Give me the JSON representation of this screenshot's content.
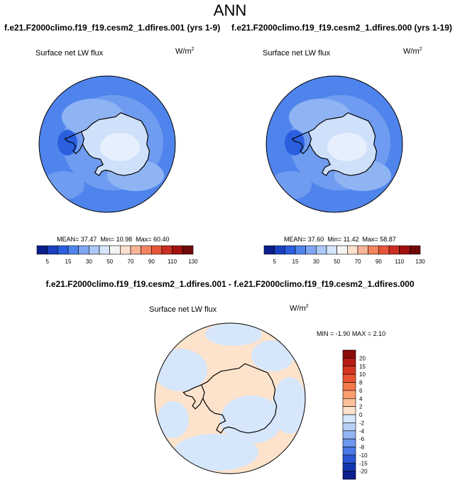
{
  "title": "ANN",
  "case_titles": [
    "f.e21.F2000climo.f19_f19.cesm2_1.dfires.001 (yrs 1-9)",
    "f.e21.F2000climo.f19_f19.cesm2_1.dfires.000 (yrs 1-19)"
  ],
  "diff_title": "f.e21.F2000climo.f19_f19.cesm2_1.dfires.001 - f.e21.F2000climo.f19_f19.cesm2_1.dfires.000",
  "units_base": "W/m",
  "units_exp": "2",
  "chart_data": [
    {
      "type": "heatmap",
      "projection": "polar-stereographic-south",
      "varname": "Surface net LW flux",
      "stats": {
        "mean_label": "MEAN=",
        "mean": "37.47",
        "min_label": "Min=",
        "min": "10.98",
        "max_label": "Max=",
        "max": "60.40"
      },
      "colorbar": {
        "orientation": "horizontal",
        "levels": [
          "5",
          "15",
          "30",
          "50",
          "70",
          "90",
          "110",
          "130"
        ],
        "colors": [
          "#0a1e8c",
          "#1a3fbf",
          "#2b5fe0",
          "#4f84ec",
          "#7ea6f2",
          "#abc8f7",
          "#d6e6fb",
          "#f5f5f5",
          "#fde0cf",
          "#f8b497",
          "#f2845f",
          "#e8563a",
          "#cc2e22",
          "#a1110f",
          "#6f0a0a"
        ]
      },
      "regions": {
        "ocean_far": "#4f84ec",
        "ocean_mid": "#6f9cf0",
        "ocean_near": "#8fb4f4",
        "coast": "#2b5fe0",
        "ice": "#cfe0fa",
        "ice_high": "#e6effc"
      }
    },
    {
      "type": "heatmap",
      "projection": "polar-stereographic-south",
      "varname": "Surface net LW flux",
      "stats": {
        "mean_label": "MEAN=",
        "mean": "37.60",
        "min_label": "Min=",
        "min": "11.42",
        "max_label": "Max=",
        "max": "58.87"
      },
      "colorbar": {
        "orientation": "horizontal",
        "levels": [
          "5",
          "15",
          "30",
          "50",
          "70",
          "90",
          "110",
          "130"
        ],
        "colors": [
          "#0a1e8c",
          "#1a3fbf",
          "#2b5fe0",
          "#4f84ec",
          "#7ea6f2",
          "#abc8f7",
          "#d6e6fb",
          "#f5f5f5",
          "#fde0cf",
          "#f8b497",
          "#f2845f",
          "#e8563a",
          "#cc2e22",
          "#a1110f",
          "#6f0a0a"
        ]
      },
      "regions": {
        "ocean_far": "#4f84ec",
        "ocean_mid": "#6f9cf0",
        "ocean_near": "#8fb4f4",
        "coast": "#2b5fe0",
        "ice": "#cfe0fa",
        "ice_high": "#e6effc"
      }
    },
    {
      "type": "heatmap",
      "projection": "polar-stereographic-south",
      "varname": "Surface net LW flux",
      "stats": {
        "min_label": "MIN =",
        "min": "-1.90",
        "max_label": "MAX =",
        "max": "2.10"
      },
      "colorbar": {
        "orientation": "vertical",
        "levels": [
          "20",
          "15",
          "10",
          "8",
          "6",
          "4",
          "2",
          "0",
          "-2",
          "-4",
          "-6",
          "-8",
          "-10",
          "-15",
          "-20"
        ],
        "colors": [
          "#8b0a0a",
          "#b51d14",
          "#d6361f",
          "#ea5530",
          "#f57a4a",
          "#fa9d6e",
          "#fcc09b",
          "#fde3cc",
          "#d6e6fb",
          "#b6cff7",
          "#93b6f3",
          "#6e98ee",
          "#4a78e4",
          "#2b55d4",
          "#1435b0",
          "#0a1e8c"
        ]
      },
      "regions": {
        "neutral_pos": "#fde3cc",
        "neutral_neg": "#d6e6fb"
      }
    }
  ]
}
